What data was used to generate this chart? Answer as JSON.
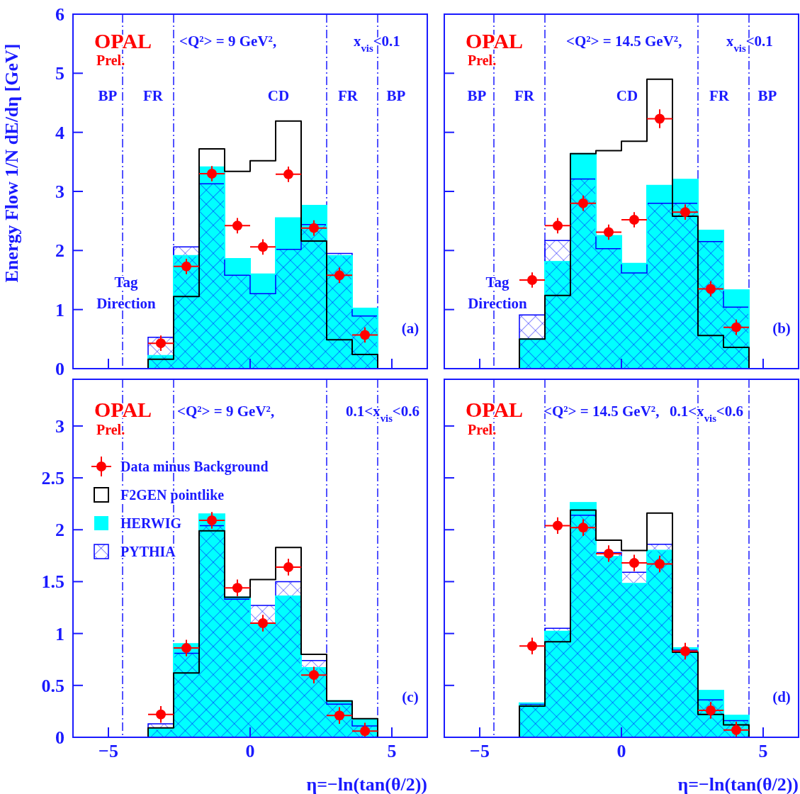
{
  "chart_data": [
    {
      "type": "histogram",
      "bins": [
        -3.6,
        -2.7,
        -1.8,
        -0.9,
        0,
        0.9,
        1.8,
        2.7,
        3.6,
        4.5
      ],
      "xlim": [
        -6.25,
        6.25
      ],
      "ylim": [
        0,
        6
      ],
      "xticks": [
        -5,
        0,
        5
      ],
      "yticks": [
        0,
        1,
        2,
        3,
        4,
        5,
        6
      ],
      "tick_labels": "y",
      "ylabel": "Energy Flow   1/N dE/dη  [GeV]",
      "legend": false,
      "series": [
        {
          "type": "scatter",
          "color": "#ff0000",
          "marker": "circle",
          "x": [
            -3.15,
            -2.25,
            -1.35,
            -0.45,
            0.45,
            1.35,
            2.25,
            3.15,
            4.05
          ],
          "values": [
            0.43,
            1.73,
            3.3,
            2.42,
            2.06,
            3.29,
            2.38,
            1.58,
            0.57
          ],
          "errors": [
            0.13,
            0.13,
            0.13,
            0.13,
            0.13,
            0.13,
            0.13,
            0.13,
            0.13
          ],
          "xerrors": [
            0.45,
            0.45,
            0.45,
            0.45,
            0.45,
            0.45,
            0.45,
            0.45,
            0.45
          ]
        },
        {
          "type": "histogram",
          "line_style": "solid",
          "color": "#000000",
          "values": [
            0.16,
            1.22,
            3.72,
            3.34,
            3.52,
            4.19,
            2.16,
            0.49,
            0.24
          ]
        },
        {
          "type": "histogram",
          "color": "#00ffff",
          "values": [
            0.22,
            1.91,
            3.41,
            1.86,
            1.6,
            2.55,
            2.76,
            1.91,
            1.02
          ]
        },
        {
          "type": "histogram",
          "color": "#0000ff",
          "values": [
            0.53,
            2.06,
            3.13,
            1.58,
            1.27,
            2.02,
            2.44,
            1.95,
            0.89
          ]
        }
      ],
      "ref_lines": [
        {
          "axis": "x",
          "value": -4.5,
          "line_style": "dashed"
        },
        {
          "axis": "x",
          "value": -2.7,
          "line_style": "dashed"
        },
        {
          "axis": "x",
          "value": 2.7,
          "line_style": "dashed"
        },
        {
          "axis": "x",
          "value": 4.5,
          "line_style": "dashed"
        }
      ],
      "annotations": [
        "OPAL",
        "Prel.",
        "<Q²> = 9 GeV²,",
        "x$_{vis}$<0.1",
        "BP",
        "FR",
        "CD",
        "FR",
        "BP",
        "Tag",
        "Direction",
        "(a)"
      ]
    },
    {
      "type": "histogram",
      "bins": [
        -3.6,
        -2.7,
        -1.8,
        -0.9,
        0,
        0.9,
        1.8,
        2.7,
        3.6,
        4.5
      ],
      "xlim": [
        -6.25,
        6.25
      ],
      "ylim": [
        0,
        6
      ],
      "xticks": [
        -5,
        0,
        5
      ],
      "yticks": [
        0,
        1,
        2,
        3,
        4,
        5,
        6
      ],
      "tick_labels": false,
      "legend": false,
      "series": [
        {
          "type": "scatter",
          "color": "#ff0000",
          "marker": "circle",
          "x": [
            -3.15,
            -2.25,
            -1.35,
            -0.45,
            0.45,
            1.35,
            2.25,
            3.15,
            4.05
          ],
          "values": [
            1.5,
            2.42,
            2.8,
            2.31,
            2.52,
            4.23,
            2.65,
            1.35,
            0.7
          ],
          "errors": [
            0.13,
            0.13,
            0.13,
            0.13,
            0.13,
            0.16,
            0.13,
            0.13,
            0.13
          ],
          "xerrors": [
            0.45,
            0.45,
            0.45,
            0.45,
            0.45,
            0.45,
            0.45,
            0.45,
            0.45
          ]
        },
        {
          "type": "histogram",
          "line_style": "solid",
          "color": "#000000",
          "values": [
            0.5,
            1.24,
            3.64,
            3.69,
            3.85,
            4.9,
            2.58,
            0.56,
            0.36
          ]
        },
        {
          "type": "histogram",
          "color": "#00ffff",
          "values": [
            0.5,
            1.81,
            3.64,
            2.25,
            1.78,
            3.1,
            3.2,
            2.34,
            1.33
          ]
        },
        {
          "type": "histogram",
          "color": "#0000ff",
          "values": [
            0.91,
            2.17,
            3.21,
            2.03,
            1.62,
            2.8,
            2.8,
            2.15,
            1.04
          ]
        }
      ],
      "ref_lines": [
        {
          "axis": "x",
          "value": -4.5,
          "line_style": "dashed"
        },
        {
          "axis": "x",
          "value": -2.7,
          "line_style": "dashed"
        },
        {
          "axis": "x",
          "value": 2.7,
          "line_style": "dashed"
        },
        {
          "axis": "x",
          "value": 4.5,
          "line_style": "dashed"
        }
      ],
      "annotations": [
        "OPAL",
        "Prel.",
        "<Q²> = 14.5 GeV²,",
        "x$_{vis}$<0.1",
        "BP",
        "FR",
        "CD",
        "FR",
        "BP",
        "Tag",
        "Direction",
        "(b)"
      ]
    },
    {
      "type": "histogram",
      "bins": [
        -3.6,
        -2.7,
        -1.8,
        -0.9,
        0,
        0.9,
        1.8,
        2.7,
        3.6,
        4.5
      ],
      "xlim": [
        -6.25,
        6.25
      ],
      "ylim": [
        0,
        3.45
      ],
      "xticks": [
        -5,
        0,
        5
      ],
      "yticks": [
        0,
        0.5,
        1,
        1.5,
        2,
        2.5,
        3
      ],
      "xlabel": "η=−ln(tan(θ/2))",
      "legend": "top left",
      "series": [
        {
          "name": "Data minus Background",
          "type": "scatter",
          "color": "#ff0000",
          "marker": "circle",
          "x": [
            -3.15,
            -2.25,
            -1.35,
            -0.45,
            0.45,
            1.35,
            2.25,
            3.15,
            4.05
          ],
          "values": [
            0.22,
            0.86,
            2.09,
            1.44,
            1.1,
            1.64,
            0.6,
            0.21,
            0.06
          ],
          "errors": [
            0.08,
            0.08,
            0.08,
            0.08,
            0.08,
            0.08,
            0.08,
            0.08,
            0.08
          ],
          "xerrors": [
            0.45,
            0.45,
            0.45,
            0.45,
            0.45,
            0.45,
            0.45,
            0.45,
            0.45
          ]
        },
        {
          "name": "F2GEN pointlike",
          "type": "histogram",
          "line_style": "solid",
          "color": "#000000",
          "values": [
            0.09,
            0.62,
            1.99,
            1.35,
            1.52,
            1.83,
            0.8,
            0.35,
            0.18
          ]
        },
        {
          "name": "HERWIG",
          "type": "histogram",
          "color": "#00ffff",
          "values": [
            0.08,
            0.9,
            2.15,
            1.35,
            1.1,
            1.36,
            0.67,
            0.35,
            0.17
          ]
        },
        {
          "name": "PYTHIA",
          "type": "histogram",
          "color": "#0000ff",
          "values": [
            0.13,
            0.81,
            2.04,
            1.33,
            1.27,
            1.5,
            0.74,
            0.32,
            0.11
          ]
        }
      ],
      "ref_lines": [
        {
          "axis": "x",
          "value": -4.5,
          "line_style": "dashed"
        },
        {
          "axis": "x",
          "value": -2.7,
          "line_style": "dashed"
        },
        {
          "axis": "x",
          "value": 2.7,
          "line_style": "dashed"
        },
        {
          "axis": "x",
          "value": 4.5,
          "line_style": "dashed"
        }
      ],
      "annotations": [
        "OPAL",
        "Prel.",
        "<Q²> = 9 GeV²,",
        "0.1<x$_{vis}$<0.6",
        "(c)"
      ]
    },
    {
      "type": "histogram",
      "bins": [
        -3.6,
        -2.7,
        -1.8,
        -0.9,
        0,
        0.9,
        1.8,
        2.7,
        3.6,
        4.5
      ],
      "xlim": [
        -6.25,
        6.25
      ],
      "ylim": [
        0,
        3.45
      ],
      "xticks": [
        -5,
        0,
        5
      ],
      "yticks": [
        0,
        0.5,
        1,
        1.5,
        2,
        2.5,
        3
      ],
      "tick_labels": "x",
      "xlabel": "η=−ln(tan(θ/2))",
      "legend": false,
      "series": [
        {
          "type": "scatter",
          "color": "#ff0000",
          "marker": "circle",
          "x": [
            -3.15,
            -2.25,
            -1.35,
            -0.45,
            0.45,
            1.35,
            2.25,
            3.15,
            4.05
          ],
          "values": [
            0.88,
            2.04,
            2.02,
            1.77,
            1.68,
            1.67,
            0.83,
            0.26,
            0.07
          ],
          "errors": [
            0.08,
            0.08,
            0.08,
            0.08,
            0.08,
            0.08,
            0.08,
            0.08,
            0.08
          ],
          "xerrors": [
            0.45,
            0.45,
            0.45,
            0.45,
            0.45,
            0.45,
            0.45,
            0.45,
            0.45
          ]
        },
        {
          "type": "histogram",
          "line_style": "solid",
          "color": "#000000",
          "values": [
            0.3,
            0.92,
            2.19,
            1.9,
            1.8,
            2.16,
            0.82,
            0.22,
            0.12
          ]
        },
        {
          "type": "histogram",
          "color": "#00ffff",
          "values": [
            0.33,
            1.02,
            2.26,
            1.74,
            1.48,
            1.8,
            0.86,
            0.45,
            0.21
          ]
        },
        {
          "type": "histogram",
          "color": "#0000ff",
          "values": [
            0.32,
            1.05,
            2.14,
            1.78,
            1.59,
            1.86,
            0.84,
            0.36,
            0.16
          ]
        }
      ],
      "ref_lines": [
        {
          "axis": "x",
          "value": -4.5,
          "line_style": "dashed"
        },
        {
          "axis": "x",
          "value": -2.7,
          "line_style": "dashed"
        },
        {
          "axis": "x",
          "value": 2.7,
          "line_style": "dashed"
        },
        {
          "axis": "x",
          "value": 4.5,
          "line_style": "dashed"
        }
      ],
      "annotations": [
        "OPAL",
        "Prel.",
        "<Q²> = 14.5 GeV²,",
        "0.1<x$_{vis}$<0.6",
        "(d)"
      ]
    }
  ]
}
